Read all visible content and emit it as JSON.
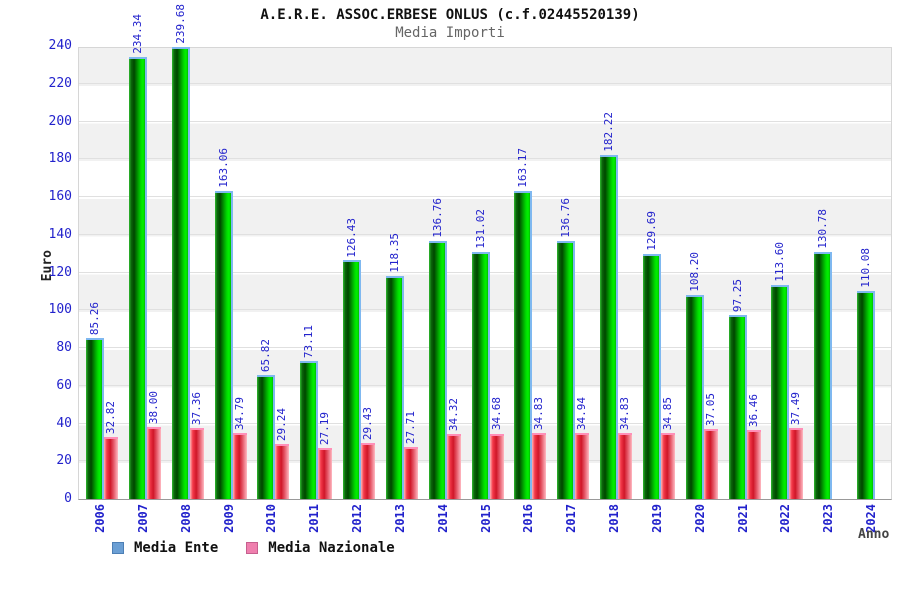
{
  "title": "A.E.R.E. ASSOC.ERBESE ONLUS (c.f.02445520139)",
  "subtitle": "Media Importi",
  "y_axis_label": "Euro",
  "x_axis_label": "Anno",
  "legend": [
    {
      "label": "Media Ente",
      "swatch_color": "#6b9fd4"
    },
    {
      "label": "Media Nazionale",
      "swatch_color": "#ef7fae"
    }
  ],
  "colors": {
    "bar_green": "#00cc00",
    "bar_red": "#dd2233",
    "tick_label": "#2222cc",
    "value_label": "#2222cc"
  },
  "chart_data": {
    "type": "bar",
    "title": "Media Importi",
    "xlabel": "Anno",
    "ylabel": "Euro",
    "ylim": [
      0,
      240
    ],
    "ytick_step": 20,
    "grid": "horizontal-bands",
    "legend_position": "bottom-left",
    "categories": [
      "2006",
      "2007",
      "2008",
      "2009",
      "2010",
      "2011",
      "2012",
      "2013",
      "2014",
      "2015",
      "2016",
      "2017",
      "2018",
      "2019",
      "2020",
      "2021",
      "2022",
      "2023",
      "2024"
    ],
    "series": [
      {
        "name": "Media Ente",
        "color": "#00cc00",
        "values": [
          85.26,
          234.34,
          239.68,
          163.06,
          65.82,
          73.11,
          126.43,
          118.35,
          136.76,
          131.02,
          163.17,
          136.76,
          182.22,
          129.69,
          108.2,
          97.25,
          113.6,
          130.78,
          110.08
        ]
      },
      {
        "name": "Media Nazionale",
        "color": "#dd2233",
        "values": [
          32.82,
          38.0,
          37.36,
          34.79,
          29.24,
          27.19,
          29.43,
          27.71,
          34.32,
          34.68,
          34.83,
          34.94,
          34.83,
          34.85,
          37.05,
          36.46,
          37.49,
          null,
          null
        ]
      }
    ]
  }
}
